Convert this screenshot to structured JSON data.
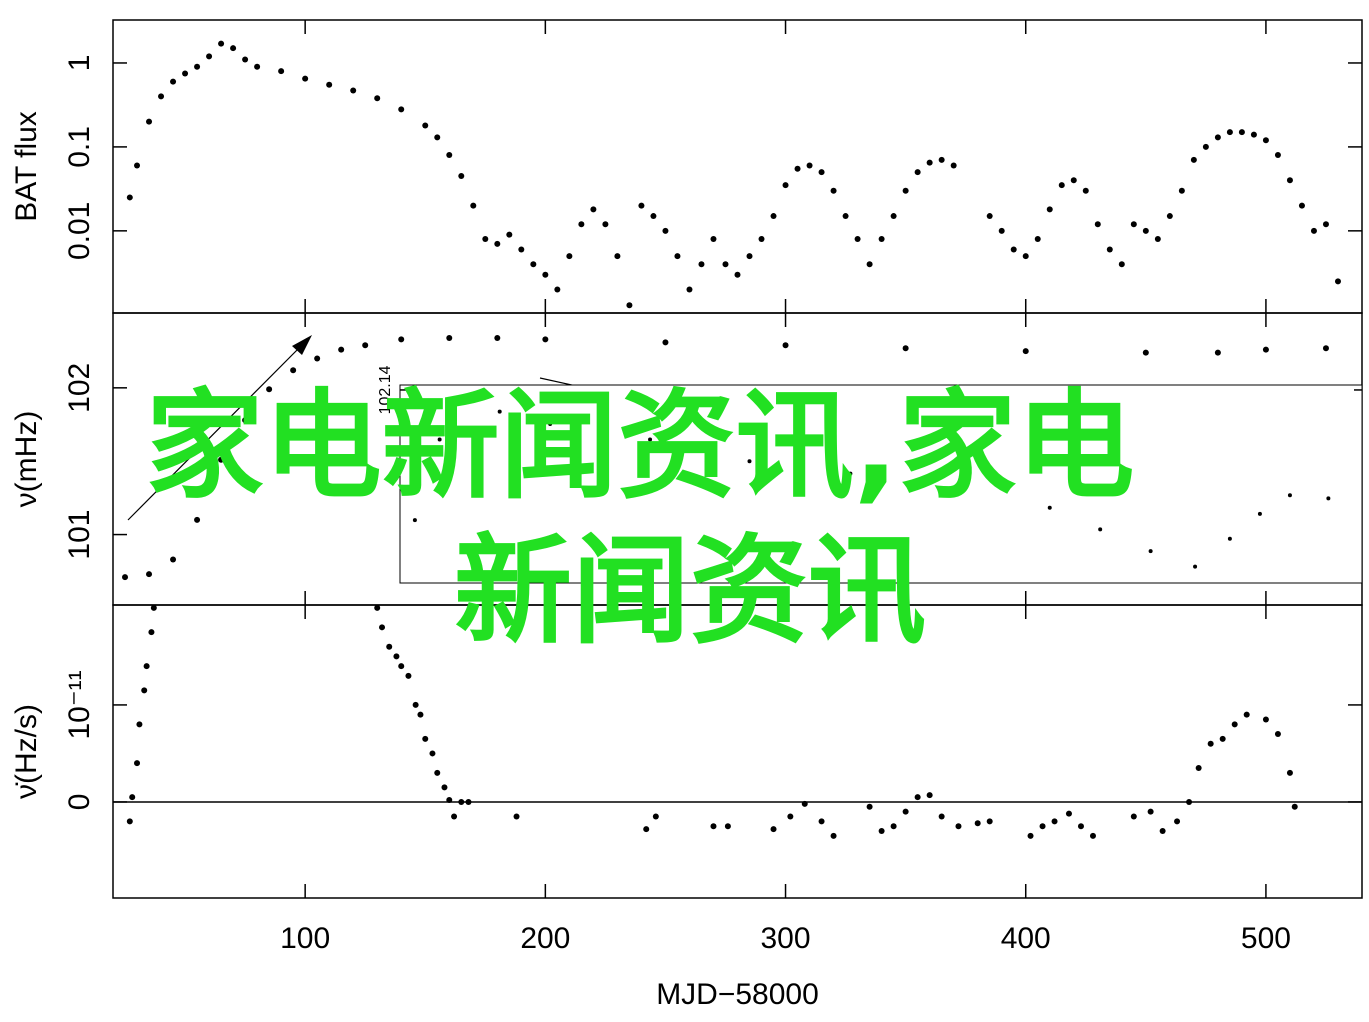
{
  "chart_data": [
    {
      "type": "scatter",
      "ylabel": "BAT flux",
      "log": true,
      "x": [
        27,
        30,
        35,
        40,
        45,
        50,
        55,
        60,
        65,
        70,
        75,
        80,
        90,
        100,
        110,
        120,
        130,
        140,
        150,
        155,
        160,
        165,
        170,
        175,
        180,
        185,
        190,
        195,
        200,
        205,
        210,
        215,
        220,
        225,
        230,
        235,
        240,
        245,
        250,
        255,
        260,
        265,
        270,
        275,
        280,
        285,
        290,
        295,
        300,
        305,
        310,
        315,
        320,
        325,
        330,
        335,
        340,
        345,
        350,
        355,
        360,
        365,
        370,
        385,
        390,
        395,
        400,
        405,
        410,
        415,
        420,
        425,
        430,
        435,
        440,
        445,
        450,
        455,
        460,
        465,
        470,
        475,
        480,
        485,
        490,
        495,
        500,
        505,
        510,
        515,
        520,
        525,
        530
      ],
      "values": [
        0.025,
        0.06,
        0.2,
        0.4,
        0.6,
        0.75,
        0.9,
        1.2,
        1.7,
        1.5,
        1.1,
        0.9,
        0.8,
        0.65,
        0.55,
        0.47,
        0.38,
        0.28,
        0.18,
        0.13,
        0.08,
        0.045,
        0.02,
        0.008,
        0.007,
        0.009,
        0.006,
        0.004,
        0.003,
        0.002,
        0.005,
        0.012,
        0.018,
        0.012,
        0.005,
        0.0013,
        0.02,
        0.015,
        0.01,
        0.005,
        0.002,
        0.004,
        0.008,
        0.004,
        0.003,
        0.005,
        0.008,
        0.015,
        0.035,
        0.055,
        0.06,
        0.05,
        0.03,
        0.015,
        0.008,
        0.004,
        0.008,
        0.015,
        0.03,
        0.05,
        0.065,
        0.07,
        0.06,
        0.015,
        0.01,
        0.006,
        0.005,
        0.008,
        0.018,
        0.035,
        0.04,
        0.03,
        0.012,
        0.006,
        0.004,
        0.012,
        0.01,
        0.008,
        0.015,
        0.03,
        0.07,
        0.1,
        0.13,
        0.15,
        0.15,
        0.14,
        0.12,
        0.08,
        0.04,
        0.02,
        0.01,
        0.012,
        0.0025
      ],
      "xlim": [
        20,
        540
      ],
      "ylim": [
        0.00105,
        3.25
      ],
      "yticks": [
        0.01,
        0.1,
        1
      ]
    },
    {
      "type": "scatter",
      "ylabel": "ν(mHz)",
      "x": [
        25,
        35,
        45,
        55,
        65,
        75,
        85,
        95,
        105,
        115,
        125,
        140,
        160,
        180,
        200,
        250,
        300,
        350,
        400,
        450,
        480,
        500,
        525
      ],
      "values": [
        100.71,
        100.73,
        100.83,
        101.1,
        101.51,
        101.78,
        101.99,
        102.12,
        102.2,
        102.26,
        102.29,
        102.33,
        102.34,
        102.34,
        102.33,
        102.31,
        102.29,
        102.27,
        102.25,
        102.24,
        102.24,
        102.26,
        102.27
      ],
      "xlim": [
        20,
        540
      ],
      "ylim": [
        100.52,
        102.51
      ],
      "yticks": [
        101,
        102
      ]
    },
    {
      "type": "scatter",
      "ylabel": "ν̇(Hz/s)",
      "xlabel": "MJD−58000",
      "x": [
        27,
        28,
        30,
        31,
        33,
        34,
        36,
        37,
        130,
        132,
        135,
        138,
        140,
        143,
        146,
        148,
        150,
        153,
        155,
        158,
        160,
        162,
        165,
        168,
        188,
        242,
        246,
        270,
        276,
        295,
        302,
        308,
        315,
        320,
        335,
        340,
        345,
        350,
        355,
        360,
        365,
        372,
        380,
        385,
        402,
        407,
        412,
        418,
        423,
        428,
        445,
        452,
        457,
        463,
        468,
        472,
        477,
        482,
        487,
        492,
        500,
        505,
        510,
        512
      ],
      "values": [
        -2e-12,
        5e-13,
        4e-12,
        8e-12,
        1.15e-11,
        1.4e-11,
        1.75e-11,
        2e-11,
        2e-11,
        1.8e-11,
        1.6e-11,
        1.5e-11,
        1.4e-11,
        1.3e-11,
        1e-11,
        9e-12,
        6.5e-12,
        5e-12,
        3e-12,
        1.5e-12,
        2e-13,
        -1.5e-12,
        0,
        0,
        -1.5e-12,
        -2.8e-12,
        -1.5e-12,
        -2.5e-12,
        -2.5e-12,
        -2.8e-12,
        -1.5e-12,
        -2e-13,
        -2e-12,
        -3.5e-12,
        -5e-13,
        -3e-12,
        -2.5e-12,
        -1e-12,
        5e-13,
        7e-13,
        -1.5e-12,
        -2.5e-12,
        -2.2e-12,
        -2e-12,
        -3.5e-12,
        -2.5e-12,
        -2e-12,
        -1.2e-12,
        -2.5e-12,
        -3.5e-12,
        -1.5e-12,
        -1e-12,
        -3e-12,
        -2e-12,
        0,
        3.5e-12,
        6e-12,
        6.5e-12,
        8e-12,
        9e-12,
        8.5e-12,
        7e-12,
        3e-12,
        -5e-13
      ],
      "xlim": [
        20,
        540
      ],
      "ylim": [
        -9.9e-12,
        2.03e-11
      ],
      "xticks": [
        100,
        200,
        300,
        400,
        500
      ],
      "yticks": [
        0,
        {
          "value": 1e-11,
          "label": "10⁻¹¹"
        }
      ]
    },
    {
      "type": "scatter",
      "x": [
        145.7,
        156,
        162.4,
        181,
        202,
        243.6,
        285,
        327,
        368.7,
        410,
        431,
        452,
        470.5,
        485,
        497.5,
        510,
        526
      ],
      "values": [
        102.098,
        102.124,
        102.134,
        102.133,
        102.129,
        102.124,
        102.117,
        102.113,
        102.108,
        102.102,
        102.095,
        102.088,
        102.083,
        102.092,
        102.1,
        102.106,
        102.105
      ],
      "xlim": [
        139.5,
        540
      ],
      "ylim": [
        102.0777,
        102.1416
      ],
      "yticks": [
        102.14
      ]
    }
  ],
  "overlay_text": [
    "家电新闻资讯,家电",
    "新闻资讯"
  ]
}
